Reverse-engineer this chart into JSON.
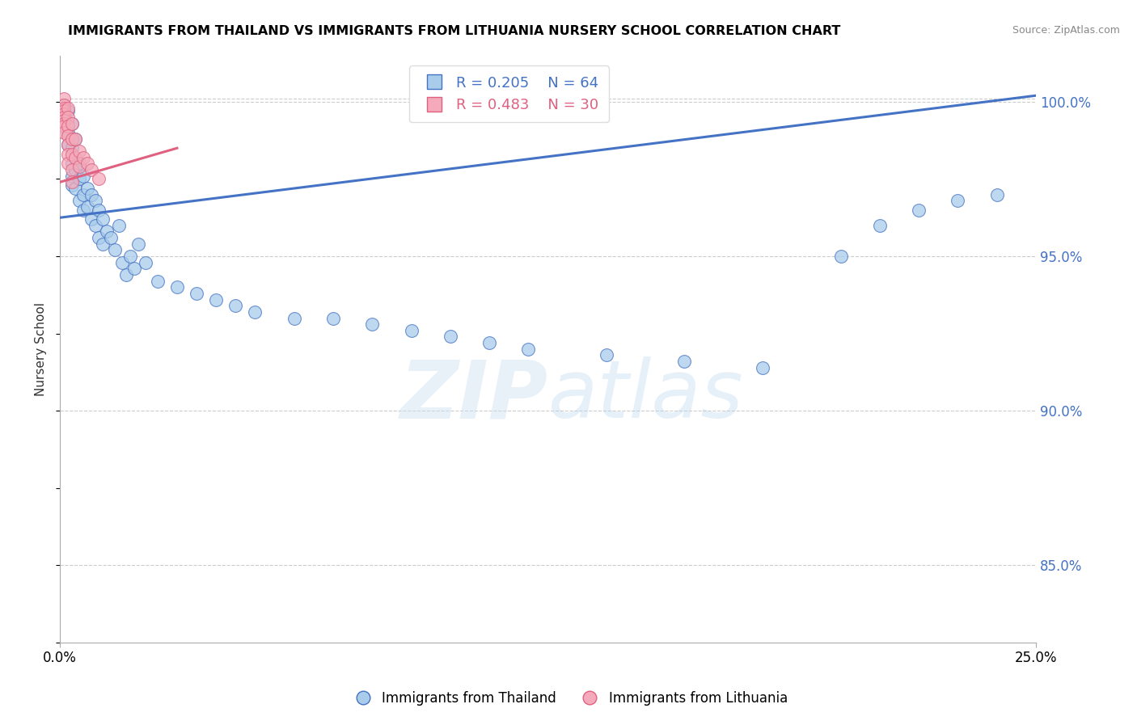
{
  "title": "IMMIGRANTS FROM THAILAND VS IMMIGRANTS FROM LITHUANIA NURSERY SCHOOL CORRELATION CHART",
  "source": "Source: ZipAtlas.com",
  "ylabel_left": "Nursery School",
  "legend_label_blue": "Immigrants from Thailand",
  "legend_label_pink": "Immigrants from Lithuania",
  "r_blue": 0.205,
  "n_blue": 64,
  "r_pink": 0.483,
  "n_pink": 30,
  "xmin": 0.0,
  "xmax": 0.25,
  "ymin": 0.825,
  "ymax": 1.015,
  "right_yticks": [
    0.85,
    0.9,
    0.95,
    1.0
  ],
  "right_ytick_labels": [
    "85.0%",
    "90.0%",
    "95.0%",
    "100.0%"
  ],
  "color_blue": "#A8CCEA",
  "color_pink": "#F4AABA",
  "line_color_blue": "#4472C4",
  "line_color_pink": "#E06080",
  "watermark_zip": "ZIP",
  "watermark_atlas": "atlas",
  "blue_line_x0": 0.0,
  "blue_line_y0": 0.9625,
  "blue_line_x1": 0.25,
  "blue_line_y1": 1.002,
  "pink_line_x0": 0.0,
  "pink_line_y0": 0.974,
  "pink_line_x1": 0.03,
  "pink_line_y1": 0.985,
  "blue_scatter_x": [
    0.001,
    0.001,
    0.001,
    0.002,
    0.002,
    0.002,
    0.002,
    0.003,
    0.003,
    0.003,
    0.003,
    0.003,
    0.003,
    0.004,
    0.004,
    0.004,
    0.004,
    0.005,
    0.005,
    0.005,
    0.006,
    0.006,
    0.006,
    0.007,
    0.007,
    0.008,
    0.008,
    0.009,
    0.009,
    0.01,
    0.01,
    0.011,
    0.011,
    0.012,
    0.013,
    0.014,
    0.015,
    0.016,
    0.017,
    0.018,
    0.019,
    0.02,
    0.022,
    0.025,
    0.03,
    0.035,
    0.04,
    0.045,
    0.05,
    0.06,
    0.07,
    0.08,
    0.09,
    0.1,
    0.11,
    0.12,
    0.14,
    0.16,
    0.18,
    0.2,
    0.21,
    0.22,
    0.23,
    0.24
  ],
  "blue_scatter_y": [
    0.999,
    0.997,
    0.995,
    0.997,
    0.993,
    0.99,
    0.986,
    0.993,
    0.988,
    0.985,
    0.98,
    0.976,
    0.973,
    0.988,
    0.982,
    0.978,
    0.972,
    0.98,
    0.975,
    0.968,
    0.976,
    0.97,
    0.965,
    0.972,
    0.966,
    0.97,
    0.962,
    0.968,
    0.96,
    0.965,
    0.956,
    0.962,
    0.954,
    0.958,
    0.956,
    0.952,
    0.96,
    0.948,
    0.944,
    0.95,
    0.946,
    0.954,
    0.948,
    0.942,
    0.94,
    0.938,
    0.936,
    0.934,
    0.932,
    0.93,
    0.93,
    0.928,
    0.926,
    0.924,
    0.922,
    0.92,
    0.918,
    0.916,
    0.914,
    0.95,
    0.96,
    0.965,
    0.968,
    0.97
  ],
  "pink_scatter_x": [
    0.001,
    0.001,
    0.001,
    0.001,
    0.001,
    0.001,
    0.001,
    0.001,
    0.001,
    0.001,
    0.002,
    0.002,
    0.002,
    0.002,
    0.002,
    0.002,
    0.002,
    0.003,
    0.003,
    0.003,
    0.003,
    0.003,
    0.004,
    0.004,
    0.005,
    0.005,
    0.006,
    0.007,
    0.008,
    0.01
  ],
  "pink_scatter_y": [
    1.001,
    0.999,
    0.998,
    0.997,
    0.996,
    0.995,
    0.994,
    0.993,
    0.992,
    0.99,
    0.998,
    0.995,
    0.992,
    0.989,
    0.986,
    0.983,
    0.98,
    0.993,
    0.988,
    0.983,
    0.978,
    0.974,
    0.988,
    0.982,
    0.984,
    0.979,
    0.982,
    0.98,
    0.978,
    0.975
  ]
}
